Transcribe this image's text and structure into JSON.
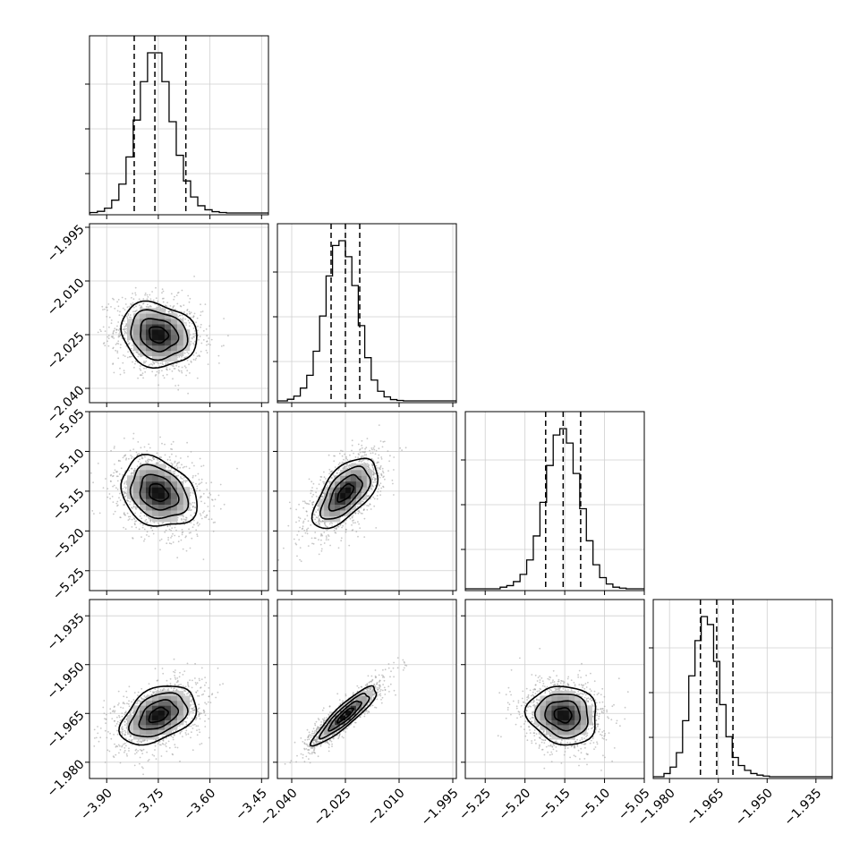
{
  "chart_data": {
    "type": "corner",
    "grid": true,
    "parameters": [
      {
        "range": [
          -3.95,
          -3.43
        ],
        "ticks": [
          -3.9,
          -3.75,
          -3.6,
          -3.45
        ],
        "tick_labels": [
          "−3.90",
          "−3.75",
          "−3.60",
          "−3.45"
        ],
        "quantiles": [
          -3.82,
          -3.76,
          -3.67
        ],
        "mean": -3.75,
        "sd": 0.055
      },
      {
        "range": [
          -2.044,
          -1.994
        ],
        "ticks": [
          -2.04,
          -2.025,
          -2.01,
          -1.995
        ],
        "tick_labels": [
          "−2.040",
          "−2.025",
          "−2.010",
          "−1.995"
        ],
        "quantiles": [
          -2.029,
          -2.025,
          -2.021
        ],
        "mean": -2.025,
        "sd": 0.0045
      },
      {
        "range": [
          -5.275,
          -5.05
        ],
        "ticks": [
          -5.25,
          -5.2,
          -5.15,
          -5.1,
          -5.05
        ],
        "tick_labels": [
          "−5.25",
          "−5.20",
          "−5.15",
          "−5.10",
          "−5.05"
        ],
        "quantiles": [
          -5.174,
          -5.152,
          -5.13
        ],
        "mean": -5.152,
        "sd": 0.022
      },
      {
        "range": [
          -1.985,
          -1.93
        ],
        "ticks": [
          -1.98,
          -1.965,
          -1.95,
          -1.935
        ],
        "tick_labels": [
          "−1.980",
          "−1.965",
          "−1.950",
          "−1.935"
        ],
        "quantiles": [
          -1.9705,
          -1.9655,
          -1.9605
        ],
        "mean": -1.9655,
        "sd": 0.0045
      }
    ],
    "histograms": [
      [
        0.003,
        0.01,
        0.03,
        0.08,
        0.18,
        0.35,
        0.58,
        0.82,
        1.0,
        1.0,
        0.82,
        0.57,
        0.36,
        0.2,
        0.1,
        0.045,
        0.02,
        0.008,
        0.003
      ],
      [
        0.01,
        0.03,
        0.08,
        0.16,
        0.31,
        0.53,
        0.78,
        0.97,
        1.0,
        0.9,
        0.72,
        0.47,
        0.27,
        0.13,
        0.06,
        0.025,
        0.008,
        0.003
      ],
      [
        0.01,
        0.02,
        0.045,
        0.09,
        0.18,
        0.33,
        0.54,
        0.77,
        0.96,
        1.0,
        0.91,
        0.72,
        0.5,
        0.3,
        0.15,
        0.07,
        0.03,
        0.01,
        0.004
      ],
      [
        0.02,
        0.06,
        0.15,
        0.35,
        0.63,
        0.85,
        1.0,
        0.95,
        0.72,
        0.45,
        0.25,
        0.12,
        0.07,
        0.04,
        0.02,
        0.01,
        0.004
      ]
    ],
    "correlations": {
      "1-0": -0.15,
      "2-0": -0.25,
      "2-1": 0.6,
      "3-0": 0.4,
      "3-1": 0.9,
      "3-2": -0.1
    }
  }
}
